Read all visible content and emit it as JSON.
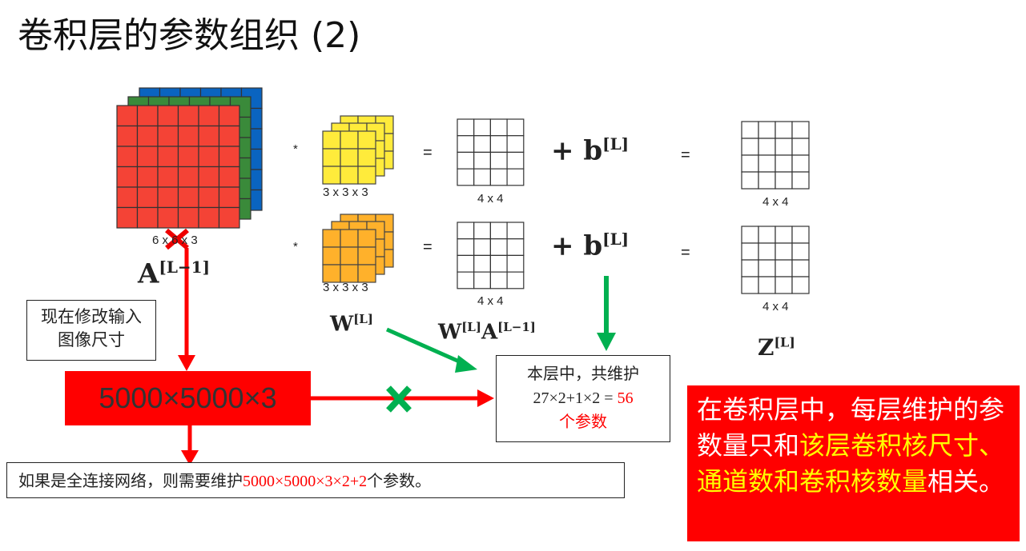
{
  "title": "卷积层的参数组织 (2)",
  "input": {
    "dims": "6 x 6 x 3",
    "label_main": "A",
    "label_sup": "[L−1]"
  },
  "filters": [
    {
      "dims": "3 x 3 x 3",
      "color": "#ffeb3b"
    },
    {
      "dims": "3 x 3 x 3",
      "color": "#ffb12b"
    }
  ],
  "conv_out": [
    {
      "dims": "4 x 4"
    },
    {
      "dims": "4 x 4"
    }
  ],
  "z_out": [
    {
      "dims": "4 x 4"
    },
    {
      "dims": "4 x 4"
    }
  ],
  "ops": {
    "star": "*",
    "eq": "=",
    "plus_b": "+ b",
    "b_sup": "[L]"
  },
  "labels": {
    "w_main": "W",
    "w_sup": "[L]",
    "wa_w": "W",
    "wa_wsup": "[L]",
    "wa_a": "A",
    "wa_asup": "[L−1]",
    "z_main": "Z",
    "z_sup": "[L]"
  },
  "note_resize": "现在修改输入图像尺寸",
  "big_size": "5000×5000×3",
  "fc_note": {
    "prefix": "如果是全连接网络，则需要维护",
    "formula": "5000×5000×3×2+2",
    "suffix": "个参数。"
  },
  "layer_note": {
    "line1": "本层中，共维护",
    "line2": "27×2+1×2 = ",
    "value": "56",
    "line3": "个参数"
  },
  "summary": {
    "part1": "在卷积层中，每层维护的参数量只和",
    "highlight": "该层卷积核尺寸、通道数和卷积核数量",
    "part2": "相关。"
  },
  "colors": {
    "red": "#ff0000",
    "green": "#00b050",
    "yellow": "#ffff00",
    "input_red": "#f44336",
    "input_green": "#3a8a3a",
    "input_blue": "#0a64c0"
  }
}
